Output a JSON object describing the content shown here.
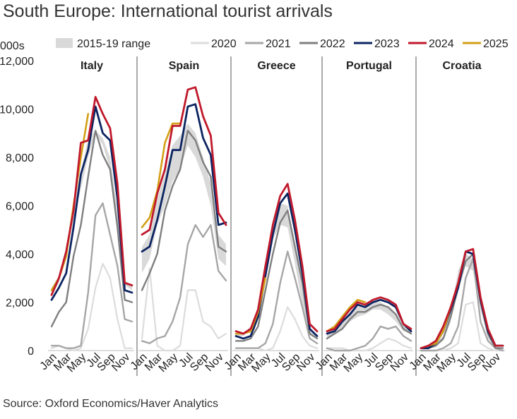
{
  "title": "South Europe: International tourist arrivals",
  "source": "Source: Oxford Economics/Haver Analytics",
  "chart_data": {
    "type": "line",
    "ylabel": "000s",
    "ylim": [
      0,
      12000
    ],
    "y_ticks": [
      0,
      2000,
      4000,
      6000,
      8000,
      10000,
      12000
    ],
    "y_tick_labels": [
      "0",
      "2,000",
      "4,000",
      "6,000",
      "8,000",
      "10,000",
      "12,000"
    ],
    "x_tick_labels": [
      "Jan",
      "Mar",
      "May",
      "Jul",
      "Sep",
      "Nov"
    ],
    "x_tick_months": [
      1,
      3,
      5,
      7,
      9,
      11
    ],
    "legend": [
      {
        "name": "2015-19 range",
        "color": "#d9d9d9",
        "kind": "area"
      },
      {
        "name": "2020",
        "color": "#dcdcdc",
        "kind": "line"
      },
      {
        "name": "2021",
        "color": "#a6a6a6",
        "kind": "line"
      },
      {
        "name": "2022",
        "color": "#7f7f7f",
        "kind": "line"
      },
      {
        "name": "2023",
        "color": "#0c2461",
        "kind": "line"
      },
      {
        "name": "2024",
        "color": "#c0192b",
        "kind": "line"
      },
      {
        "name": "2025",
        "color": "#d4a017",
        "kind": "line"
      }
    ],
    "panels": [
      {
        "name": "Italy",
        "range_low": [
          2300,
          2800,
          3800,
          5400,
          6700,
          8000,
          9000,
          8500,
          7500,
          5400,
          2700,
          2500
        ],
        "range_high": [
          2600,
          3100,
          4200,
          6100,
          7400,
          8800,
          9100,
          8800,
          8000,
          5900,
          2900,
          2700
        ],
        "series": {
          "2020": [
            100,
            200,
            100,
            0,
            100,
            900,
            2600,
            3600,
            3000,
            1300,
            100,
            100
          ],
          "2021": [
            200,
            200,
            100,
            100,
            200,
            2400,
            5600,
            6100,
            4800,
            3500,
            1300,
            1200
          ],
          "2022": [
            1000,
            1600,
            2000,
            3900,
            5200,
            7200,
            9100,
            8100,
            7500,
            5100,
            2100,
            2000
          ],
          "2023": [
            2100,
            2600,
            3200,
            5100,
            7300,
            8300,
            10100,
            9000,
            8700,
            6300,
            2500,
            2400
          ],
          "2024": [
            2300,
            3000,
            4100,
            5800,
            8600,
            8700,
            10500,
            9800,
            9200,
            6900,
            2800,
            2700
          ],
          "2025": [
            2500,
            3000,
            3900,
            6000,
            8000,
            9800,
            null,
            null,
            null,
            null,
            null,
            null
          ]
        }
      },
      {
        "name": "Spain",
        "range_low": [
          3200,
          3800,
          5200,
          6000,
          7000,
          7500,
          8500,
          8000,
          7200,
          6000,
          3800,
          3500
        ],
        "range_high": [
          4300,
          4800,
          6300,
          7300,
          8500,
          8900,
          9400,
          9000,
          8000,
          6900,
          4800,
          4400
        ],
        "series": {
          "2020": [
            500,
            3400,
            200,
            0,
            0,
            200,
            2500,
            2500,
            1200,
            1000,
            500,
            700
          ],
          "2021": [
            400,
            300,
            500,
            600,
            1200,
            2200,
            4400,
            5200,
            4700,
            5200,
            3300,
            2900
          ],
          "2022": [
            2500,
            3200,
            4000,
            5800,
            6800,
            7500,
            9100,
            8700,
            7800,
            7200,
            4300,
            4100
          ],
          "2023": [
            4100,
            4300,
            5400,
            6800,
            8300,
            8300,
            10100,
            10200,
            8800,
            8100,
            5200,
            5300
          ],
          "2024": [
            4800,
            5000,
            6500,
            7500,
            9300,
            9300,
            10800,
            10900,
            9700,
            8900,
            5700,
            5200
          ],
          "2025": [
            5100,
            5500,
            6600,
            8600,
            9400,
            9400,
            null,
            null,
            null,
            null,
            null,
            null
          ]
        }
      },
      {
        "name": "Greece",
        "range_low": [
          600,
          600,
          900,
          1500,
          3000,
          4600,
          5200,
          5100,
          3600,
          1900,
          700,
          500
        ],
        "range_high": [
          700,
          700,
          1000,
          1700,
          3500,
          5300,
          6100,
          6000,
          4400,
          2500,
          800,
          600
        ],
        "series": {
          "2020": [
            100,
            100,
            100,
            100,
            0,
            100,
            800,
            1800,
            1300,
            600,
            200,
            100
          ],
          "2021": [
            100,
            100,
            100,
            100,
            300,
            1100,
            2800,
            4100,
            3000,
            1800,
            500,
            300
          ],
          "2022": [
            400,
            400,
            500,
            1000,
            2500,
            4000,
            5300,
            5800,
            4300,
            2800,
            700,
            500
          ],
          "2023": [
            600,
            500,
            600,
            1400,
            3100,
            4800,
            6100,
            6500,
            5000,
            3200,
            900,
            600
          ],
          "2024": [
            800,
            700,
            900,
            1700,
            3500,
            5200,
            6400,
            6900,
            5400,
            3500,
            1100,
            800
          ],
          "2025": [
            700,
            700,
            800,
            1600,
            3000,
            null,
            null,
            null,
            null,
            null,
            null,
            null
          ]
        }
      },
      {
        "name": "Portugal",
        "range_low": [
          500,
          700,
          900,
          1200,
          1400,
          1500,
          1700,
          1700,
          1500,
          1200,
          800,
          700
        ],
        "range_high": [
          800,
          900,
          1200,
          1600,
          1800,
          1900,
          2000,
          2000,
          1800,
          1500,
          1000,
          900
        ],
        "series": {
          "2020": [
            100,
            100,
            100,
            0,
            0,
            0,
            100,
            300,
            500,
            400,
            200,
            100
          ],
          "2021": [
            100,
            0,
            0,
            0,
            100,
            200,
            500,
            1000,
            900,
            1000,
            600,
            400
          ],
          "2022": [
            500,
            700,
            900,
            1300,
            1600,
            1600,
            1800,
            1900,
            1800,
            1500,
            900,
            700
          ],
          "2023": [
            700,
            800,
            1200,
            1500,
            1900,
            1800,
            2000,
            2100,
            2000,
            1800,
            1100,
            800
          ],
          "2024": [
            800,
            900,
            1300,
            1700,
            2000,
            1900,
            2100,
            2200,
            2100,
            1900,
            1100,
            900
          ],
          "2025": [
            800,
            1000,
            1400,
            1800,
            2100,
            2000,
            null,
            null,
            null,
            null,
            null,
            null
          ]
        }
      },
      {
        "name": "Croatia",
        "range_low": [
          100,
          100,
          200,
          400,
          1200,
          2900,
          3500,
          3300,
          1700,
          500,
          100,
          100
        ],
        "range_high": [
          100,
          200,
          300,
          600,
          1600,
          3300,
          4000,
          3800,
          2000,
          700,
          200,
          100
        ],
        "series": {
          "2020": [
            0,
            0,
            0,
            0,
            100,
            300,
            1900,
            2000,
            300,
            100,
            0,
            0
          ],
          "2021": [
            0,
            0,
            0,
            100,
            300,
            1000,
            3000,
            3800,
            1200,
            400,
            100,
            0
          ],
          "2022": [
            100,
            100,
            200,
            500,
            1400,
            2600,
            3700,
            4000,
            2000,
            700,
            100,
            100
          ],
          "2023": [
            100,
            100,
            300,
            800,
            1700,
            2600,
            4100,
            4000,
            2100,
            800,
            200,
            200
          ],
          "2024": [
            100,
            200,
            400,
            1000,
            1800,
            2800,
            4100,
            4200,
            2200,
            900,
            200,
            200
          ],
          "2025": [
            100,
            200,
            300,
            800,
            1800,
            2800,
            null,
            null,
            null,
            null,
            null,
            null
          ]
        }
      }
    ]
  }
}
